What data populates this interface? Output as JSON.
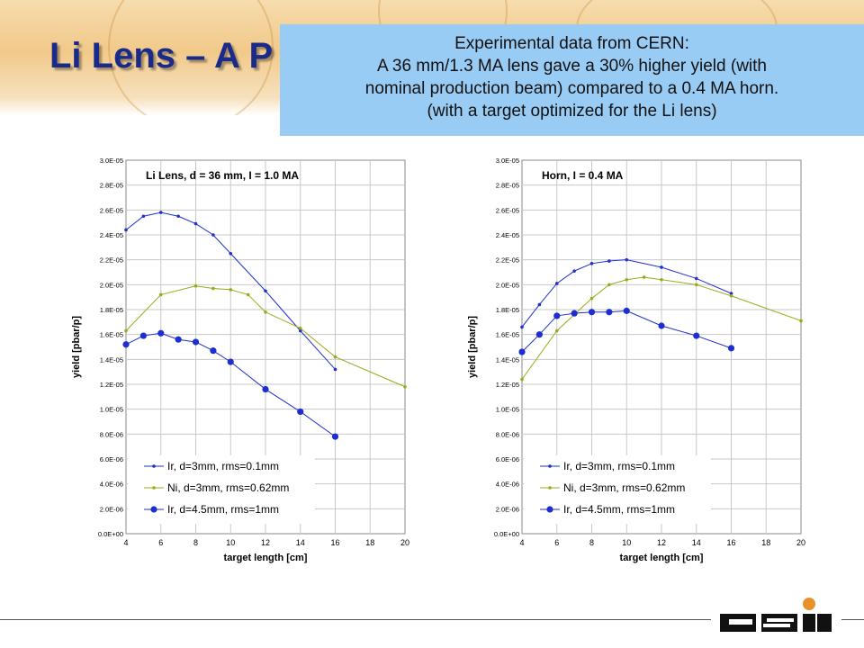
{
  "slide": {
    "title": "Li Lens – A P",
    "callout": [
      "Experimental data from CERN:",
      "A 36 mm/1.3 MA lens gave a 30% higher yield (with",
      "nominal production beam) compared to a 0.4 MA horn.",
      "(with a target optimized for the Li lens)"
    ]
  },
  "colors": {
    "dark_blue": "#1f2fcf",
    "olive": "#9aab1a",
    "title_blue": "#1a2a8a",
    "callout_bg": "#99ccf4"
  },
  "logo": {
    "text": "GSI",
    "dot_color": "#e8902a"
  },
  "chart_data": [
    {
      "type": "line",
      "title": "Li Lens, d = 36 mm, I = 1.0 MA",
      "xlabel": "target length [cm]",
      "ylabel": "yield [pbar/p]",
      "xlim": [
        4,
        20
      ],
      "ylim": [
        0,
        3e-05
      ],
      "xticks": [
        "4",
        "6",
        "8",
        "10",
        "12",
        "14",
        "16",
        "18",
        "20"
      ],
      "yticks": [
        "0.0E+00",
        "2.0E-06",
        "4.0E-06",
        "6.0E-06",
        "8.0E-06",
        "1.0E-05",
        "1.2E-05",
        "1.4E-05",
        "1.6E-05",
        "1.8E-05",
        "2.0E-05",
        "2.2E-05",
        "2.4E-05",
        "2.6E-05",
        "2.8E-05",
        "3.0E-05"
      ],
      "grid": true,
      "legend": "bottom-left",
      "series": [
        {
          "name": "Ir, d=3mm, rms=0.1mm",
          "color": "#1f2fcf",
          "marker": "small",
          "x": [
            4,
            5,
            6,
            7,
            8,
            9,
            10,
            12,
            14,
            16
          ],
          "y": [
            2.44e-05,
            2.55e-05,
            2.58e-05,
            2.55e-05,
            2.49e-05,
            2.4e-05,
            2.25e-05,
            1.95e-05,
            1.63e-05,
            1.32e-05
          ]
        },
        {
          "name": "Ni, d=3mm, rms=0.62mm",
          "color": "#9aab1a",
          "marker": "small",
          "x": [
            4,
            6,
            8,
            9,
            10,
            11,
            12,
            14,
            16,
            20
          ],
          "y": [
            1.63e-05,
            1.92e-05,
            1.99e-05,
            1.97e-05,
            1.96e-05,
            1.92e-05,
            1.78e-05,
            1.65e-05,
            1.42e-05,
            1.18e-05
          ]
        },
        {
          "name": "Ir, d=4.5mm, rms=1mm",
          "color": "#1f2fcf",
          "marker": "large",
          "x": [
            4,
            5,
            6,
            7,
            8,
            9,
            10,
            12,
            14,
            16
          ],
          "y": [
            1.52e-05,
            1.59e-05,
            1.61e-05,
            1.56e-05,
            1.54e-05,
            1.47e-05,
            1.38e-05,
            1.16e-05,
            9.8e-06,
            7.8e-06
          ]
        }
      ]
    },
    {
      "type": "line",
      "title": "Horn, I = 0.4 MA",
      "xlabel": "target length [cm]",
      "ylabel": "yield [pbar/p]",
      "xlim": [
        4,
        20
      ],
      "ylim": [
        0,
        3e-05
      ],
      "xticks": [
        "4",
        "6",
        "8",
        "10",
        "12",
        "14",
        "16",
        "18",
        "20"
      ],
      "yticks": [
        "0.0E+00",
        "2.0E-06",
        "4.0E-06",
        "6.0E-06",
        "8.0E-06",
        "1.0E-05",
        "1.2E-05",
        "1.4E-05",
        "1.6E-05",
        "1.8E-05",
        "2.0E-05",
        "2.2E-05",
        "2.4E-05",
        "2.6E-05",
        "2.8E-05",
        "3.0E-05"
      ],
      "grid": true,
      "legend": "bottom-left",
      "series": [
        {
          "name": "Ir, d=3mm, rms=0.1mm",
          "color": "#1f2fcf",
          "marker": "small",
          "x": [
            4,
            5,
            6,
            7,
            8,
            9,
            10,
            12,
            14,
            16
          ],
          "y": [
            1.66e-05,
            1.84e-05,
            2.01e-05,
            2.11e-05,
            2.17e-05,
            2.19e-05,
            2.2e-05,
            2.14e-05,
            2.05e-05,
            1.93e-05
          ]
        },
        {
          "name": "Ni, d=3mm, rms=0.62mm",
          "color": "#9aab1a",
          "marker": "small",
          "x": [
            4,
            6,
            8,
            9,
            10,
            11,
            12,
            14,
            16,
            20
          ],
          "y": [
            1.24e-05,
            1.63e-05,
            1.89e-05,
            2e-05,
            2.04e-05,
            2.06e-05,
            2.04e-05,
            2e-05,
            1.91e-05,
            1.71e-05
          ]
        },
        {
          "name": "Ir, d=4.5mm, rms=1mm",
          "color": "#1f2fcf",
          "marker": "large",
          "x": [
            4,
            5,
            6,
            7,
            8,
            9,
            10,
            12,
            14,
            16
          ],
          "y": [
            1.46e-05,
            1.6e-05,
            1.75e-05,
            1.77e-05,
            1.78e-05,
            1.78e-05,
            1.79e-05,
            1.67e-05,
            1.59e-05,
            1.49e-05
          ]
        }
      ]
    }
  ]
}
